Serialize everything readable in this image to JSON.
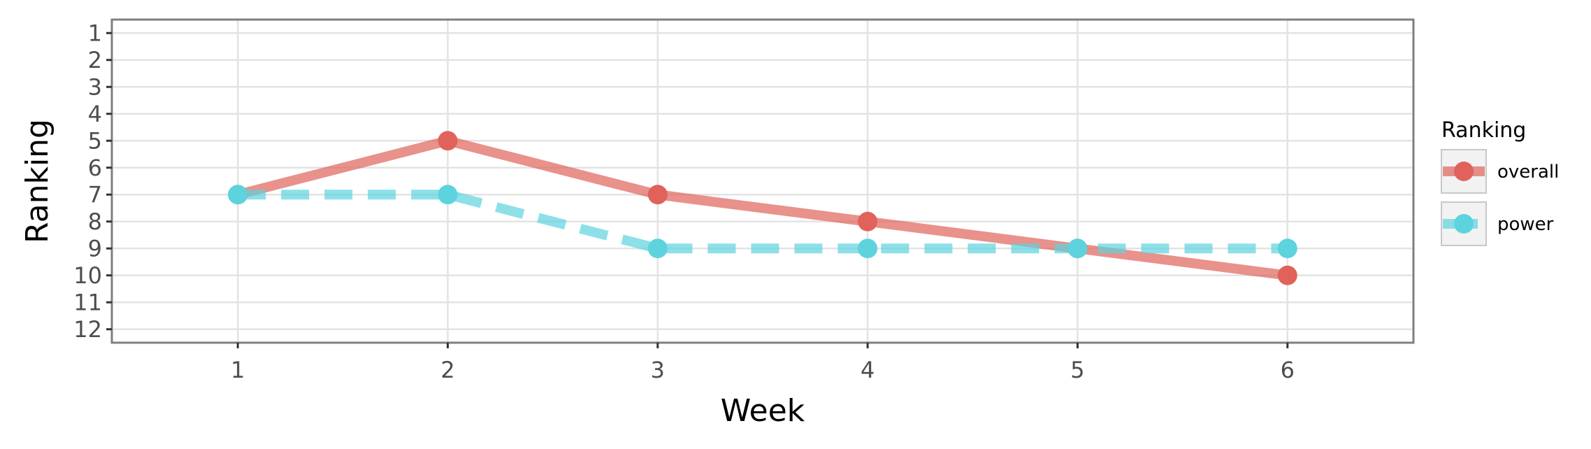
{
  "chart_data": {
    "type": "line",
    "xlabel": "Week",
    "ylabel": "Ranking",
    "x": [
      1,
      2,
      3,
      4,
      5,
      6
    ],
    "xlim": [
      0.4,
      6.6
    ],
    "ylim": [
      12.5,
      0.5
    ],
    "y_reversed": true,
    "x_ticks": [
      "1",
      "2",
      "3",
      "4",
      "5",
      "6"
    ],
    "y_ticks": [
      "1",
      "2",
      "3",
      "4",
      "5",
      "6",
      "7",
      "8",
      "9",
      "10",
      "11",
      "12"
    ],
    "grid": true,
    "legend": {
      "title": "Ranking",
      "position": "right"
    },
    "series": [
      {
        "name": "overall",
        "values": [
          7,
          5,
          7,
          8,
          9,
          10
        ],
        "color": "#e0625a",
        "line_style": "solid"
      },
      {
        "name": "power",
        "values": [
          7,
          7,
          9,
          9,
          9,
          9
        ],
        "color": "#5dd3de",
        "line_style": "dashed"
      }
    ]
  }
}
